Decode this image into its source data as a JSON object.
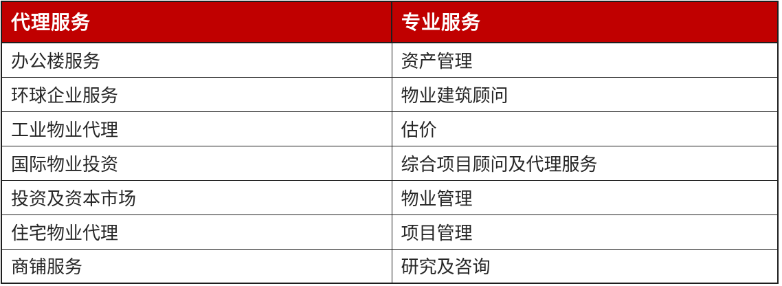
{
  "theme": {
    "header_background": "#c00000",
    "header_text": "#ffffff",
    "border_color": "#1e1e1e",
    "body_text": "#262626",
    "page_background": "#ffffff"
  },
  "table": {
    "headers": [
      "代理服务",
      "专业服务"
    ],
    "rows": [
      [
        "办公楼服务",
        "资产管理"
      ],
      [
        "环球企业服务",
        "物业建筑顾问"
      ],
      [
        "工业物业代理",
        "估价"
      ],
      [
        "国际物业投资",
        "综合项目顾问及代理服务"
      ],
      [
        "投资及资本市场",
        "物业管理"
      ],
      [
        "住宅物业代理",
        "项目管理"
      ],
      [
        "商铺服务",
        "研究及咨询"
      ]
    ]
  }
}
